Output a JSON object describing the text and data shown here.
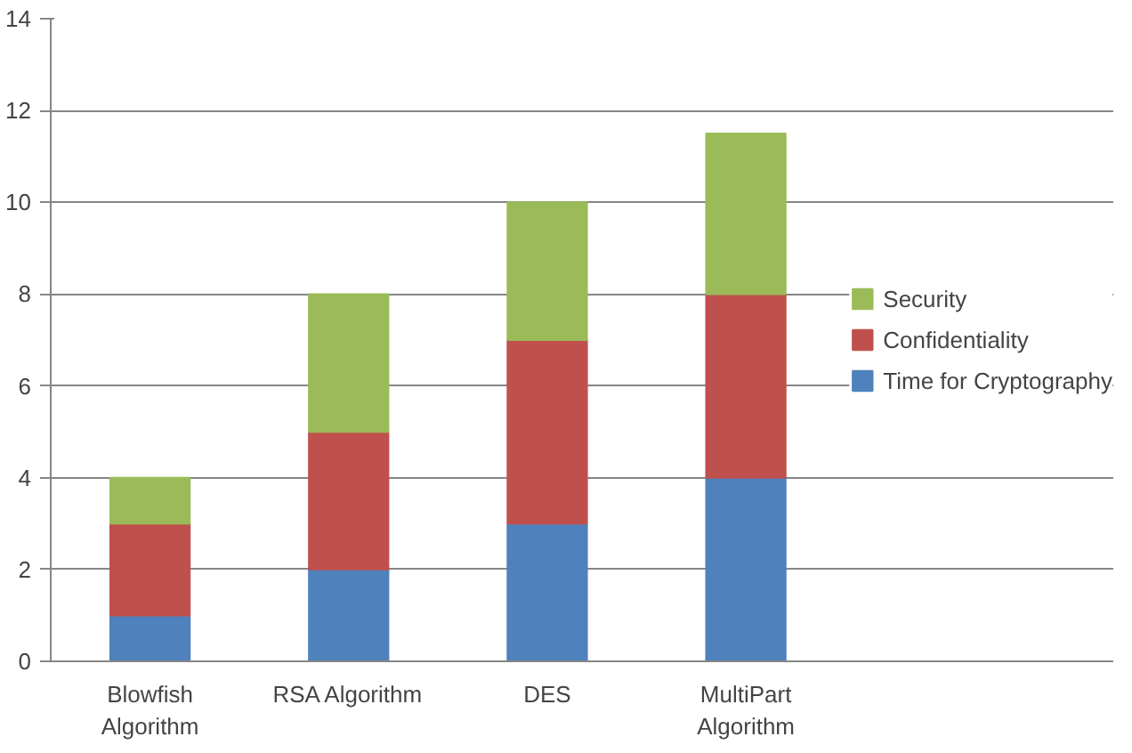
{
  "chart_data": {
    "type": "bar",
    "stacked": true,
    "categories": [
      "Blowfish Algorithm",
      "RSA Algorithm",
      "DES",
      "MultiPart Algorithm"
    ],
    "series": [
      {
        "name": "Time for Cryptography",
        "color": "#4f81bd",
        "values": [
          1,
          2,
          3,
          4
        ]
      },
      {
        "name": "Confidentiality",
        "color": "#c0504d",
        "values": [
          2,
          3,
          4,
          4
        ]
      },
      {
        "name": "Security",
        "color": "#9bbb59",
        "values": [
          1,
          3,
          3,
          3.5
        ]
      }
    ],
    "ylim": [
      0,
      14
    ],
    "yticks": [
      0,
      2,
      4,
      6,
      8,
      10,
      12,
      14
    ],
    "grid": "y",
    "legend": "right"
  }
}
